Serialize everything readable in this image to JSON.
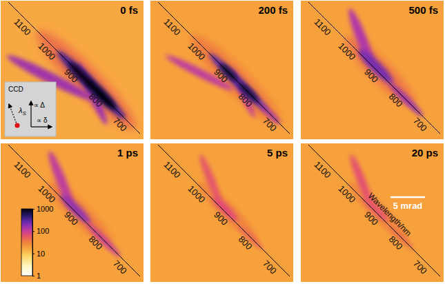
{
  "chart_data": {
    "type": "heatmap",
    "log": true,
    "panels": [
      {
        "title": "0 fs",
        "background": 16,
        "features": [
          {
            "wavelength": 860,
            "offset": 0,
            "length": 20,
            "width": 4,
            "tilt": 0,
            "intensity": 40
          },
          {
            "wavelength": 940,
            "offset": -3.5,
            "length": 14,
            "width": 1.6,
            "tilt": -18,
            "intensity": 150
          },
          {
            "wavelength": 820,
            "offset": -0.8,
            "length": 10,
            "width": 1.3,
            "tilt": 20,
            "intensity": 150
          },
          {
            "wavelength": 840,
            "offset": 0,
            "length": 14,
            "width": 1.8,
            "tilt": 0,
            "intensity": 350
          },
          {
            "wavelength": 880,
            "offset": 0,
            "length": 5,
            "width": 1.1,
            "tilt": 0,
            "intensity": 900
          },
          {
            "wavelength": 800,
            "offset": 0,
            "length": 6,
            "width": 1.2,
            "tilt": 0,
            "intensity": 1000
          }
        ]
      },
      {
        "title": "200 fs",
        "background": 18,
        "features": [
          {
            "wavelength": 860,
            "offset": 0,
            "length": 18,
            "width": 3.5,
            "tilt": 0,
            "intensity": 35
          },
          {
            "wavelength": 950,
            "offset": -3,
            "length": 11,
            "width": 1.2,
            "tilt": -18,
            "intensity": 110
          },
          {
            "wavelength": 820,
            "offset": -0.6,
            "length": 8,
            "width": 1,
            "tilt": 20,
            "intensity": 100
          },
          {
            "wavelength": 850,
            "offset": 0,
            "length": 12,
            "width": 1.4,
            "tilt": 0,
            "intensity": 280
          },
          {
            "wavelength": 890,
            "offset": 0,
            "length": 3.5,
            "width": 1,
            "tilt": 0,
            "intensity": 800
          },
          {
            "wavelength": 810,
            "offset": 0,
            "length": 4,
            "width": 1,
            "tilt": 0,
            "intensity": 700
          },
          {
            "wavelength": 720,
            "offset": 0,
            "length": 4,
            "width": 0.8,
            "tilt": 0,
            "intensity": 150
          }
        ]
      },
      {
        "title": "500 fs",
        "background": 18,
        "features": [
          {
            "wavelength": 890,
            "offset": 0.3,
            "length": 14,
            "width": 3,
            "tilt": 0,
            "intensity": 40
          },
          {
            "wavelength": 1000,
            "offset": 1.8,
            "length": 9,
            "width": 1.5,
            "tilt": 23,
            "intensity": 130
          },
          {
            "wavelength": 910,
            "offset": 0.3,
            "length": 7,
            "width": 1.6,
            "tilt": 0,
            "intensity": 220
          },
          {
            "wavelength": 780,
            "offset": 0,
            "length": 7,
            "width": 1,
            "tilt": 0,
            "intensity": 160
          }
        ]
      },
      {
        "title": "1 ps",
        "background": 18,
        "features": [
          {
            "wavelength": 890,
            "offset": 0.3,
            "length": 13,
            "width": 2.6,
            "tilt": 0,
            "intensity": 35
          },
          {
            "wavelength": 1000,
            "offset": 1.8,
            "length": 9,
            "width": 1.4,
            "tilt": 23,
            "intensity": 110
          },
          {
            "wavelength": 910,
            "offset": 0.3,
            "length": 6,
            "width": 1.4,
            "tilt": 0,
            "intensity": 170
          },
          {
            "wavelength": 790,
            "offset": 0,
            "length": 7,
            "width": 1,
            "tilt": 0,
            "intensity": 100
          }
        ]
      },
      {
        "title": "5 ps",
        "background": 18,
        "features": [
          {
            "wavelength": 900,
            "offset": 0.3,
            "length": 12,
            "width": 2.4,
            "tilt": 0,
            "intensity": 28
          },
          {
            "wavelength": 1000,
            "offset": 1.8,
            "length": 8,
            "width": 1.2,
            "tilt": 23,
            "intensity": 60
          },
          {
            "wavelength": 910,
            "offset": 0.3,
            "length": 5,
            "width": 1.2,
            "tilt": 0,
            "intensity": 70
          },
          {
            "wavelength": 800,
            "offset": 0,
            "length": 5,
            "width": 0.9,
            "tilt": 0,
            "intensity": 45
          }
        ]
      },
      {
        "title": "20 ps",
        "background": 18,
        "features": [
          {
            "wavelength": 900,
            "offset": 0.3,
            "length": 12,
            "width": 2.4,
            "tilt": 0,
            "intensity": 28
          },
          {
            "wavelength": 1000,
            "offset": 1.8,
            "length": 8,
            "width": 1.2,
            "tilt": 23,
            "intensity": 65
          },
          {
            "wavelength": 910,
            "offset": 0.3,
            "length": 5,
            "width": 1.2,
            "tilt": 0,
            "intensity": 60
          },
          {
            "wavelength": 800,
            "offset": 0,
            "length": 5,
            "width": 0.9,
            "tilt": 0,
            "intensity": 40
          }
        ]
      }
    ],
    "wavelength_label": "Wavelength/nm",
    "wavelength_range": [
      640,
      1180
    ],
    "wavelength_ticks": [
      1100,
      1000,
      900,
      800,
      700
    ],
    "colorbar_range": [
      1,
      1000
    ],
    "colorbar_ticks": [
      1,
      10,
      100,
      1000
    ],
    "scale_bar": {
      "label": "5 mrad",
      "value": 5
    },
    "inset": {
      "title": "CCD",
      "vertical": "∝ Δ",
      "horizontal": "∝ δ",
      "diagonal": "λ",
      "diagonal_subscript": "S"
    }
  }
}
